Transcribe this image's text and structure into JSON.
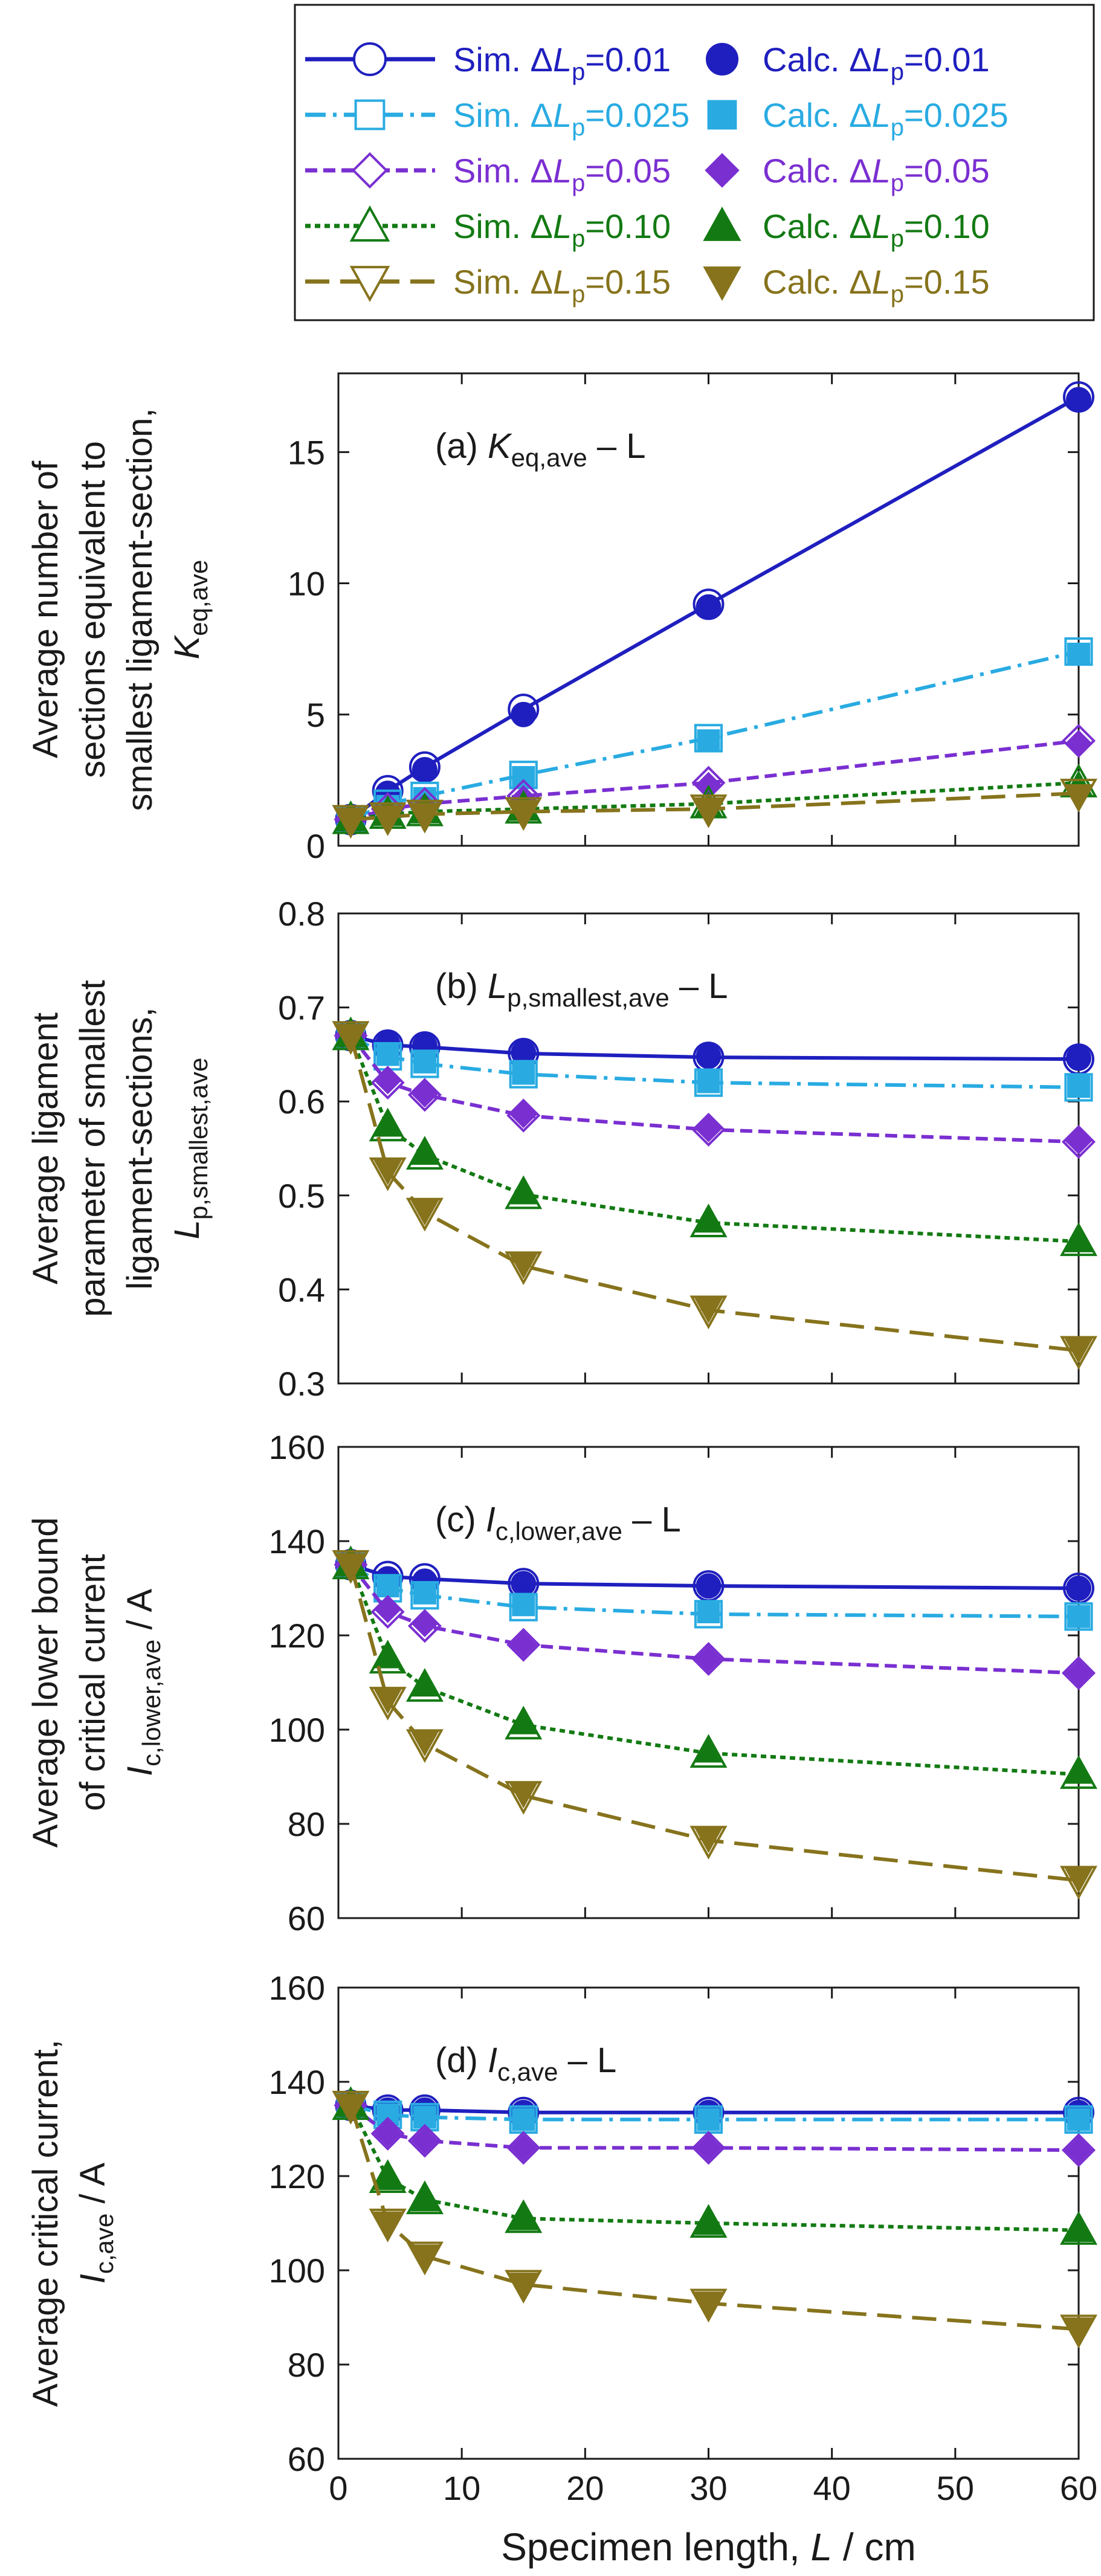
{
  "colors": {
    "0.01": "#1f1fbf",
    "0.025": "#29abe2",
    "0.05": "#7a2fd1",
    "0.10": "#137a13",
    "0.15": "#86731c",
    "axis": "#1a1a1a"
  },
  "legend": {
    "sim_prefix": "Sim. ",
    "calc_prefix": "Calc. ",
    "delta": "Δ",
    "var": "L",
    "sub": "p",
    "entries": [
      {
        "key": "0.01",
        "value": "=0.01",
        "sim_marker": "circle",
        "calc_marker": "circle",
        "line": "solid"
      },
      {
        "key": "0.025",
        "value": "=0.025",
        "sim_marker": "square",
        "calc_marker": "square",
        "line": "dashdot"
      },
      {
        "key": "0.05",
        "value": "=0.05",
        "sim_marker": "diamond",
        "calc_marker": "diamond",
        "line": "dashed"
      },
      {
        "key": "0.10",
        "value": "=0.10",
        "sim_marker": "triangle-up",
        "calc_marker": "triangle-up",
        "line": "dotted"
      },
      {
        "key": "0.15",
        "value": "=0.15",
        "sim_marker": "triangle-down",
        "calc_marker": "triangle-down",
        "line": "longdash"
      }
    ]
  },
  "shared_x": {
    "label_prefix": "Specimen length, ",
    "label_var": "L",
    "label_suffix": " / cm",
    "ticks": [
      "0",
      "10",
      "20",
      "30",
      "40",
      "50",
      "60"
    ],
    "xlim": [
      0,
      60
    ]
  },
  "chart_data": [
    {
      "id": "a",
      "type": "line",
      "title_prefix": "(a) ",
      "title_var": "K",
      "title_sub": "eq,ave",
      "title_suffix": " – L",
      "ylabel_lines": [
        "Average number of",
        "sections equivalent to",
        "smallest ligament-section,"
      ],
      "ylabel_var": "K",
      "ylabel_sub": "eq,ave",
      "ylim": [
        0,
        18
      ],
      "yticks": [
        "0",
        "5",
        "10",
        "15"
      ],
      "ytick_values": [
        0,
        5,
        10,
        15
      ],
      "x": [
        1,
        4,
        7,
        15,
        30,
        60
      ],
      "series": [
        {
          "name": "0.01",
          "sim": [
            1.0,
            2.1,
            3.0,
            5.2,
            9.2,
            17.1
          ],
          "calc": [
            1.0,
            2.0,
            2.9,
            5.0,
            9.1,
            17.0
          ]
        },
        {
          "name": "0.025",
          "sim": [
            1.0,
            1.6,
            1.9,
            2.7,
            4.1,
            7.4
          ],
          "calc": [
            1.0,
            1.5,
            1.8,
            2.6,
            4.0,
            7.3
          ]
        },
        {
          "name": "0.05",
          "sim": [
            1.0,
            1.4,
            1.6,
            1.9,
            2.4,
            4.0
          ],
          "calc": [
            1.0,
            1.3,
            1.5,
            1.8,
            2.3,
            3.9
          ]
        },
        {
          "name": "0.10",
          "sim": [
            1.0,
            1.2,
            1.3,
            1.4,
            1.6,
            2.4
          ],
          "calc": [
            1.0,
            1.2,
            1.3,
            1.4,
            1.5,
            2.3
          ]
        },
        {
          "name": "0.15",
          "sim": [
            1.0,
            1.1,
            1.2,
            1.3,
            1.4,
            2.0
          ],
          "calc": [
            1.0,
            1.1,
            1.2,
            1.3,
            1.4,
            1.9
          ]
        }
      ]
    },
    {
      "id": "b",
      "type": "line",
      "title_prefix": "(b) ",
      "title_var": "L",
      "title_sub": "p,smallest,ave",
      "title_suffix": " – L",
      "ylabel_lines": [
        "Average ligament",
        "parameter of smallest",
        "ligament-sections,"
      ],
      "ylabel_var": "L",
      "ylabel_sub": "p,smallest,ave",
      "ylim": [
        0.3,
        0.8
      ],
      "yticks": [
        "0.3",
        "0.4",
        "0.5",
        "0.6",
        "0.7",
        "0.8"
      ],
      "ytick_values": [
        0.3,
        0.4,
        0.5,
        0.6,
        0.7,
        0.8
      ],
      "x": [
        1,
        4,
        7,
        15,
        30,
        60
      ],
      "series": [
        {
          "name": "0.01",
          "sim": [
            0.67,
            0.66,
            0.658,
            0.651,
            0.647,
            0.645
          ],
          "calc": [
            0.67,
            0.661,
            0.659,
            0.652,
            0.648,
            0.646
          ]
        },
        {
          "name": "0.025",
          "sim": [
            0.67,
            0.648,
            0.64,
            0.629,
            0.62,
            0.615
          ],
          "calc": [
            0.67,
            0.65,
            0.642,
            0.63,
            0.621,
            0.616
          ]
        },
        {
          "name": "0.05",
          "sim": [
            0.67,
            0.62,
            0.607,
            0.585,
            0.57,
            0.557
          ],
          "calc": [
            0.67,
            0.622,
            0.608,
            0.586,
            0.571,
            0.558
          ]
        },
        {
          "name": "0.10",
          "sim": [
            0.67,
            0.573,
            0.543,
            0.501,
            0.471,
            0.451
          ],
          "calc": [
            0.67,
            0.575,
            0.545,
            0.503,
            0.473,
            0.452
          ]
        },
        {
          "name": "0.15",
          "sim": [
            0.67,
            0.525,
            0.482,
            0.425,
            0.378,
            0.335
          ],
          "calc": [
            0.67,
            0.527,
            0.484,
            0.427,
            0.38,
            0.337
          ]
        }
      ]
    },
    {
      "id": "c",
      "type": "line",
      "title_prefix": "(c) ",
      "title_var": "I",
      "title_sub": "c,lower,ave",
      "title_suffix": " – L",
      "ylabel_lines": [
        "Average lower bound",
        "of critical current"
      ],
      "ylabel_var": "I",
      "ylabel_sub": "c,lower,ave",
      "ylabel_tail": " / A",
      "ylim": [
        60,
        160
      ],
      "yticks": [
        "60",
        "80",
        "100",
        "120",
        "140",
        "160"
      ],
      "ytick_values": [
        60,
        80,
        100,
        120,
        140,
        160
      ],
      "x": [
        1,
        4,
        7,
        15,
        30,
        60
      ],
      "series": [
        {
          "name": "0.01",
          "sim": [
            135,
            132.5,
            132,
            131,
            130.5,
            130
          ],
          "calc": [
            135,
            132,
            131.5,
            131,
            130.5,
            130
          ]
        },
        {
          "name": "0.025",
          "sim": [
            135,
            130,
            128.5,
            126,
            124.5,
            124
          ],
          "calc": [
            135,
            130.5,
            129,
            126.5,
            125,
            124
          ]
        },
        {
          "name": "0.05",
          "sim": [
            135,
            125,
            122,
            118,
            115,
            112
          ],
          "calc": [
            135,
            125.5,
            122.5,
            118,
            115,
            112
          ]
        },
        {
          "name": "0.10",
          "sim": [
            135,
            115,
            109,
            101,
            95,
            90.5
          ],
          "calc": [
            135,
            115.5,
            109.5,
            101.5,
            95.5,
            91
          ]
        },
        {
          "name": "0.15",
          "sim": [
            135,
            106,
            97,
            86,
            76.5,
            68
          ],
          "calc": [
            135,
            106.5,
            97.5,
            86.5,
            77,
            68.5
          ]
        }
      ]
    },
    {
      "id": "d",
      "type": "line",
      "title_prefix": "(d) ",
      "title_var": "I",
      "title_sub": "c,ave",
      "title_suffix": " – L",
      "ylabel_lines": [
        "Average critical current,"
      ],
      "ylabel_var": "I",
      "ylabel_sub": "c,ave",
      "ylabel_tail": " / A",
      "ylim": [
        60,
        160
      ],
      "yticks": [
        "60",
        "80",
        "100",
        "120",
        "140",
        "160"
      ],
      "ytick_values": [
        60,
        80,
        100,
        120,
        140,
        160
      ],
      "x": [
        1,
        4,
        7,
        15,
        30,
        60
      ],
      "series": [
        {
          "name": "0.01",
          "sim": [
            135,
            134,
            134,
            133.5,
            133.5,
            133.5
          ],
          "calc": [
            135,
            134,
            134,
            133.5,
            133.5,
            133.5
          ]
        },
        {
          "name": "0.025",
          "sim": [
            135,
            133,
            132.5,
            132,
            132,
            132
          ],
          "calc": [
            135,
            133,
            132.5,
            132,
            132,
            132
          ]
        },
        {
          "name": "0.05",
          "sim": [
            135,
            129,
            127.5,
            126,
            126,
            125.5
          ],
          "calc": [
            135,
            129,
            127.5,
            126,
            126,
            125.5
          ]
        },
        {
          "name": "0.10",
          "sim": [
            135,
            119.5,
            115,
            111,
            110,
            108.5
          ],
          "calc": [
            135,
            119.5,
            115,
            111,
            110,
            108.5
          ]
        },
        {
          "name": "0.15",
          "sim": [
            135,
            110,
            103,
            97,
            93,
            87.5
          ],
          "calc": [
            135,
            110,
            103,
            97,
            93,
            87.5
          ]
        }
      ]
    }
  ]
}
